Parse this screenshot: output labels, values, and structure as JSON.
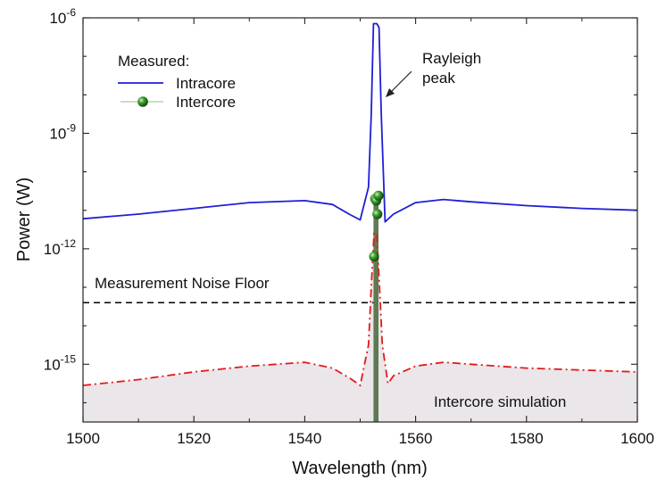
{
  "chart_data": {
    "type": "line",
    "x_axis": {
      "label": "Wavelength (nm)",
      "range": [
        1500,
        1600
      ],
      "ticks": [
        1500,
        1520,
        1540,
        1560,
        1580,
        1600
      ]
    },
    "y_axis": {
      "label": "Power (W)",
      "scale": "log",
      "range_log10": [
        -16.5,
        -6
      ],
      "ticks_log10": [
        -6,
        -9,
        -12,
        -15
      ],
      "tick_labels": [
        {
          "base": "10",
          "exp": "-6"
        },
        {
          "base": "10",
          "exp": "-9"
        },
        {
          "base": "10",
          "exp": "-12"
        },
        {
          "base": "10",
          "exp": "-15"
        }
      ]
    },
    "grid": false,
    "legend": {
      "position": "top-left",
      "title": "Measured:"
    },
    "series": [
      {
        "name": "Intracore",
        "kind": "measured-line",
        "color": "#1f1fd6",
        "x": [
          1500,
          1510,
          1520,
          1530,
          1540,
          1545,
          1548,
          1550,
          1551.5,
          1552,
          1552.4,
          1553,
          1553.4,
          1553.8,
          1554.5,
          1556,
          1560,
          1565,
          1570,
          1580,
          1590,
          1600
        ],
        "y_log10": [
          -11.22,
          -11.1,
          -10.95,
          -10.8,
          -10.75,
          -10.85,
          -11.1,
          -11.25,
          -10.4,
          -8.5,
          -6.15,
          -6.15,
          -6.25,
          -8.5,
          -11.3,
          -11.1,
          -10.8,
          -10.72,
          -10.78,
          -10.88,
          -10.95,
          -11.0
        ]
      },
      {
        "name": "Intercore",
        "kind": "measured-points",
        "color": "#2e8b1e",
        "x": [
          1552.5,
          1552.7,
          1552.9,
          1553.1,
          1553.3
        ],
        "y_log10": [
          -12.2,
          -10.7,
          -10.75,
          -11.1,
          -10.62
        ]
      },
      {
        "name": "Intercore simulation",
        "kind": "simulation-dashdot",
        "color": "#e11b1b",
        "x": [
          1500,
          1510,
          1520,
          1530,
          1540,
          1545,
          1548,
          1550,
          1551.5,
          1552,
          1552.5,
          1553,
          1553.5,
          1554,
          1555,
          1556,
          1560,
          1565,
          1570,
          1580,
          1590,
          1600
        ],
        "y_log10": [
          -15.55,
          -15.4,
          -15.2,
          -15.05,
          -14.95,
          -15.1,
          -15.35,
          -15.55,
          -14.5,
          -13.0,
          -11.6,
          -11.6,
          -13.0,
          -14.5,
          -15.5,
          -15.3,
          -15.05,
          -14.95,
          -15.0,
          -15.1,
          -15.15,
          -15.2
        ]
      }
    ],
    "reference_lines": [
      {
        "label": "Measurement Noise Floor",
        "y_log10": -13.4,
        "style": "dashed",
        "color": "#000000"
      }
    ],
    "annotations": [
      {
        "text_lines": [
          "Rayleigh",
          "peak"
        ],
        "arrow_to": {
          "x": 1553.2,
          "y_log10": -7.6
        }
      },
      {
        "text_lines": [
          "Intercore simulation"
        ]
      }
    ],
    "colors": {
      "intracore": "#1f1fd6",
      "intercore_marker": "#2e8b1e",
      "intercore_bar": "#5f7a52",
      "simulation": "#e11b1b",
      "shade": "#ebe6ea",
      "noise_floor": "#000000"
    }
  }
}
